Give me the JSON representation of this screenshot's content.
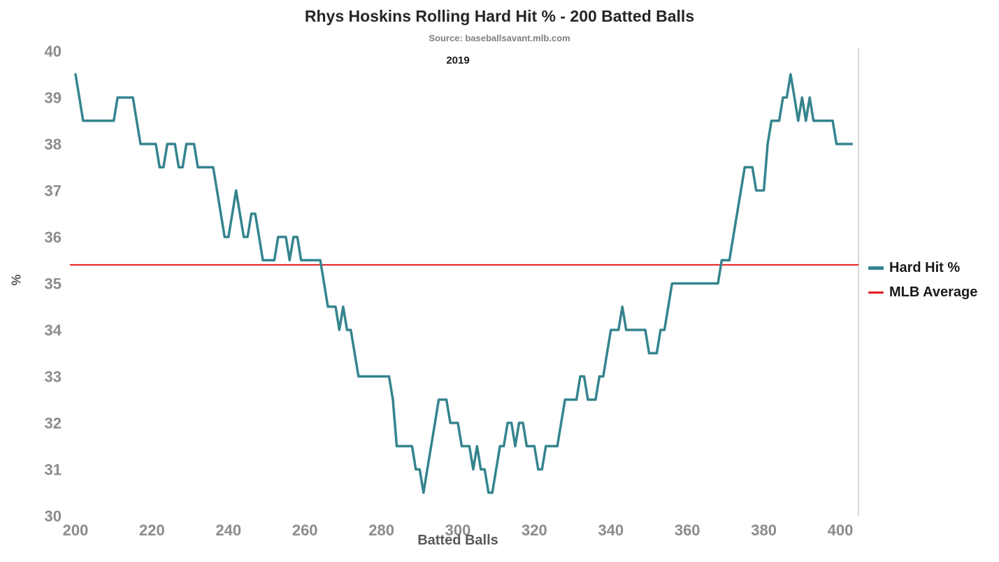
{
  "chart": {
    "title": "Rhys Hoskins Rolling Hard Hit % - 200 Batted Balls",
    "subtitle": "Source: baseballsavant.mlb.com",
    "annotation": "2019",
    "xlabel": "Batted Balls",
    "ylabel": "%",
    "legend": [
      {
        "label": "Hard Hit %",
        "color": "#35848e",
        "thickness": 5
      },
      {
        "label": "MLB Average",
        "color": "#e31a1c",
        "thickness": 3
      }
    ],
    "colors": {
      "line": "#35848e",
      "average": "#e31a1c",
      "tick": "#8c8c8c",
      "axis_label": "#595959",
      "spine": "#d9d9d9"
    }
  },
  "chart_data": {
    "type": "line",
    "title": "Rhys Hoskins Rolling Hard Hit % - 200 Batted Balls",
    "subtitle": "Source: baseballsavant.mlb.com",
    "annotation": "2019",
    "xlabel": "Batted Balls",
    "ylabel": "%",
    "xrange": [
      200,
      400
    ],
    "yrange": [
      30,
      40
    ],
    "xticks": [
      200,
      220,
      240,
      260,
      280,
      300,
      320,
      340,
      360,
      380,
      400
    ],
    "yticks": [
      30,
      31,
      32,
      33,
      34,
      35,
      36,
      37,
      38,
      39,
      40
    ],
    "grid": false,
    "legend_position": "right",
    "series": [
      {
        "name": "Hard Hit %",
        "type": "line",
        "color": "#35848e",
        "points": [
          [
            200,
            39.5
          ],
          [
            201,
            39
          ],
          [
            202,
            38.5
          ],
          [
            203,
            38.5
          ],
          [
            204,
            38.5
          ],
          [
            205,
            38.5
          ],
          [
            206,
            38.5
          ],
          [
            207,
            38.5
          ],
          [
            208,
            38.5
          ],
          [
            209,
            38.5
          ],
          [
            210,
            38.5
          ],
          [
            211,
            39
          ],
          [
            212,
            39
          ],
          [
            213,
            39
          ],
          [
            214,
            39
          ],
          [
            215,
            39
          ],
          [
            216,
            38.5
          ],
          [
            217,
            38
          ],
          [
            218,
            38
          ],
          [
            219,
            38
          ],
          [
            220,
            38
          ],
          [
            221,
            38
          ],
          [
            222,
            37.5
          ],
          [
            223,
            37.5
          ],
          [
            224,
            38
          ],
          [
            225,
            38
          ],
          [
            226,
            38
          ],
          [
            227,
            37.5
          ],
          [
            228,
            37.5
          ],
          [
            229,
            38
          ],
          [
            230,
            38
          ],
          [
            231,
            38
          ],
          [
            232,
            37.5
          ],
          [
            233,
            37.5
          ],
          [
            234,
            37.5
          ],
          [
            235,
            37.5
          ],
          [
            236,
            37.5
          ],
          [
            237,
            37
          ],
          [
            238,
            36.5
          ],
          [
            239,
            36
          ],
          [
            240,
            36
          ],
          [
            241,
            36.5
          ],
          [
            242,
            37
          ],
          [
            243,
            36.5
          ],
          [
            244,
            36
          ],
          [
            245,
            36
          ],
          [
            246,
            36.5
          ],
          [
            247,
            36.5
          ],
          [
            248,
            36
          ],
          [
            249,
            35.5
          ],
          [
            250,
            35.5
          ],
          [
            251,
            35.5
          ],
          [
            252,
            35.5
          ],
          [
            253,
            36
          ],
          [
            254,
            36
          ],
          [
            255,
            36
          ],
          [
            256,
            35.5
          ],
          [
            257,
            36
          ],
          [
            258,
            36
          ],
          [
            259,
            35.5
          ],
          [
            260,
            35.5
          ],
          [
            261,
            35.5
          ],
          [
            262,
            35.5
          ],
          [
            263,
            35.5
          ],
          [
            264,
            35.5
          ],
          [
            265,
            35
          ],
          [
            266,
            34.5
          ],
          [
            267,
            34.5
          ],
          [
            268,
            34.5
          ],
          [
            269,
            34
          ],
          [
            270,
            34.5
          ],
          [
            271,
            34
          ],
          [
            272,
            34
          ],
          [
            273,
            33.5
          ],
          [
            274,
            33
          ],
          [
            275,
            33
          ],
          [
            276,
            33
          ],
          [
            277,
            33
          ],
          [
            278,
            33
          ],
          [
            279,
            33
          ],
          [
            280,
            33
          ],
          [
            281,
            33
          ],
          [
            282,
            33
          ],
          [
            283,
            32.5
          ],
          [
            284,
            31.5
          ],
          [
            285,
            31.5
          ],
          [
            286,
            31.5
          ],
          [
            287,
            31.5
          ],
          [
            288,
            31.5
          ],
          [
            289,
            31
          ],
          [
            290,
            31
          ],
          [
            291,
            30.5
          ],
          [
            292,
            31
          ],
          [
            293,
            31.5
          ],
          [
            294,
            32
          ],
          [
            295,
            32.5
          ],
          [
            296,
            32.5
          ],
          [
            297,
            32.5
          ],
          [
            298,
            32
          ],
          [
            299,
            32
          ],
          [
            300,
            32
          ],
          [
            301,
            31.5
          ],
          [
            302,
            31.5
          ],
          [
            303,
            31.5
          ],
          [
            304,
            31
          ],
          [
            305,
            31.5
          ],
          [
            306,
            31
          ],
          [
            307,
            31
          ],
          [
            308,
            30.5
          ],
          [
            309,
            30.5
          ],
          [
            310,
            31
          ],
          [
            311,
            31.5
          ],
          [
            312,
            31.5
          ],
          [
            313,
            32
          ],
          [
            314,
            32
          ],
          [
            315,
            31.5
          ],
          [
            316,
            32
          ],
          [
            317,
            32
          ],
          [
            318,
            31.5
          ],
          [
            319,
            31.5
          ],
          [
            320,
            31.5
          ],
          [
            321,
            31
          ],
          [
            322,
            31
          ],
          [
            323,
            31.5
          ],
          [
            324,
            31.5
          ],
          [
            325,
            31.5
          ],
          [
            326,
            31.5
          ],
          [
            327,
            32
          ],
          [
            328,
            32.5
          ],
          [
            329,
            32.5
          ],
          [
            330,
            32.5
          ],
          [
            331,
            32.5
          ],
          [
            332,
            33
          ],
          [
            333,
            33
          ],
          [
            334,
            32.5
          ],
          [
            335,
            32.5
          ],
          [
            336,
            32.5
          ],
          [
            337,
            33
          ],
          [
            338,
            33
          ],
          [
            339,
            33.5
          ],
          [
            340,
            34
          ],
          [
            341,
            34
          ],
          [
            342,
            34
          ],
          [
            343,
            34.5
          ],
          [
            344,
            34
          ],
          [
            345,
            34
          ],
          [
            346,
            34
          ],
          [
            347,
            34
          ],
          [
            348,
            34
          ],
          [
            349,
            34
          ],
          [
            350,
            33.5
          ],
          [
            351,
            33.5
          ],
          [
            352,
            33.5
          ],
          [
            353,
            34
          ],
          [
            354,
            34
          ],
          [
            355,
            34.5
          ],
          [
            356,
            35
          ],
          [
            357,
            35
          ],
          [
            358,
            35
          ],
          [
            359,
            35
          ],
          [
            360,
            35
          ],
          [
            361,
            35
          ],
          [
            362,
            35
          ],
          [
            363,
            35
          ],
          [
            364,
            35
          ],
          [
            365,
            35
          ],
          [
            366,
            35
          ],
          [
            367,
            35
          ],
          [
            368,
            35
          ],
          [
            369,
            35.5
          ],
          [
            370,
            35.5
          ],
          [
            371,
            35.5
          ],
          [
            372,
            36
          ],
          [
            373,
            36.5
          ],
          [
            374,
            37
          ],
          [
            375,
            37.5
          ],
          [
            376,
            37.5
          ],
          [
            377,
            37.5
          ],
          [
            378,
            37
          ],
          [
            379,
            37
          ],
          [
            380,
            37
          ],
          [
            381,
            38
          ],
          [
            382,
            38.5
          ],
          [
            383,
            38.5
          ],
          [
            384,
            38.5
          ],
          [
            385,
            39
          ],
          [
            386,
            39
          ],
          [
            387,
            39.5
          ],
          [
            388,
            39
          ],
          [
            389,
            38.5
          ],
          [
            390,
            39
          ],
          [
            391,
            38.5
          ],
          [
            392,
            39
          ],
          [
            393,
            38.5
          ],
          [
            394,
            38.5
          ],
          [
            395,
            38.5
          ],
          [
            396,
            38.5
          ],
          [
            397,
            38.5
          ],
          [
            398,
            38.5
          ],
          [
            399,
            38
          ],
          [
            400,
            38
          ],
          [
            401,
            38
          ],
          [
            402,
            38
          ],
          [
            403,
            38
          ]
        ]
      },
      {
        "name": "MLB Average",
        "type": "hline",
        "color": "#e31a1c",
        "value": 35.4
      }
    ]
  }
}
